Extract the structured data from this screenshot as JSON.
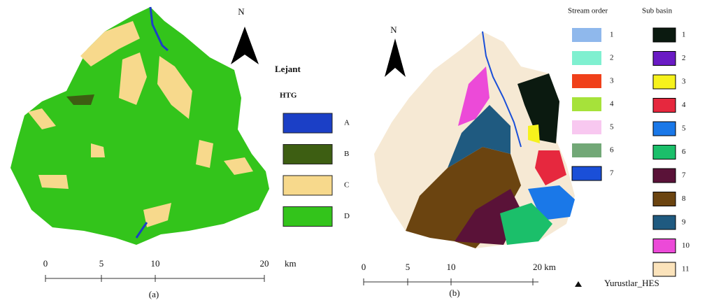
{
  "panel_a": {
    "north": "N",
    "legend_title": "Lejant",
    "legend_subtitle": "HTG",
    "legend": [
      {
        "label": "A",
        "color": "#1b3fc6"
      },
      {
        "label": "B",
        "color": "#3d5e12"
      },
      {
        "label": "C",
        "color": "#f7d98c"
      },
      {
        "label": "D",
        "color": "#33c41b"
      }
    ],
    "scale": {
      "ticks": [
        "0",
        "5",
        "10",
        "20"
      ],
      "unit": "km"
    },
    "caption": "(a)"
  },
  "panel_b": {
    "north": "N",
    "stream_order": {
      "title": "Stream order",
      "items": [
        {
          "label": "1",
          "color": "#8fb8ec"
        },
        {
          "label": "2",
          "color": "#7ff0d0"
        },
        {
          "label": "3",
          "color": "#f0401a"
        },
        {
          "label": "4",
          "color": "#a6e23a"
        },
        {
          "label": "5",
          "color": "#f8c8f0"
        },
        {
          "label": "6",
          "color": "#72a877"
        },
        {
          "label": "7",
          "color": "#1a4fd8"
        }
      ]
    },
    "sub_basin": {
      "title": "Sub basin",
      "items": [
        {
          "label": "1",
          "color": "#0b1a10"
        },
        {
          "label": "2",
          "color": "#6a1bc4"
        },
        {
          "label": "3",
          "color": "#f6f21c"
        },
        {
          "label": "4",
          "color": "#e6283e"
        },
        {
          "label": "5",
          "color": "#1a78e8"
        },
        {
          "label": "6",
          "color": "#1bbf6a"
        },
        {
          "label": "7",
          "color": "#5a1238"
        },
        {
          "label": "8",
          "color": "#6b4410"
        },
        {
          "label": "9",
          "color": "#1f5a80"
        },
        {
          "label": "10",
          "color": "#ec4ad8"
        },
        {
          "label": "11",
          "color": "#fbe3bb"
        }
      ]
    },
    "scale": {
      "ticks": [
        "0",
        "5",
        "10",
        "20 km"
      ]
    },
    "caption": "(b)",
    "station": "Yurustlar_HES"
  }
}
